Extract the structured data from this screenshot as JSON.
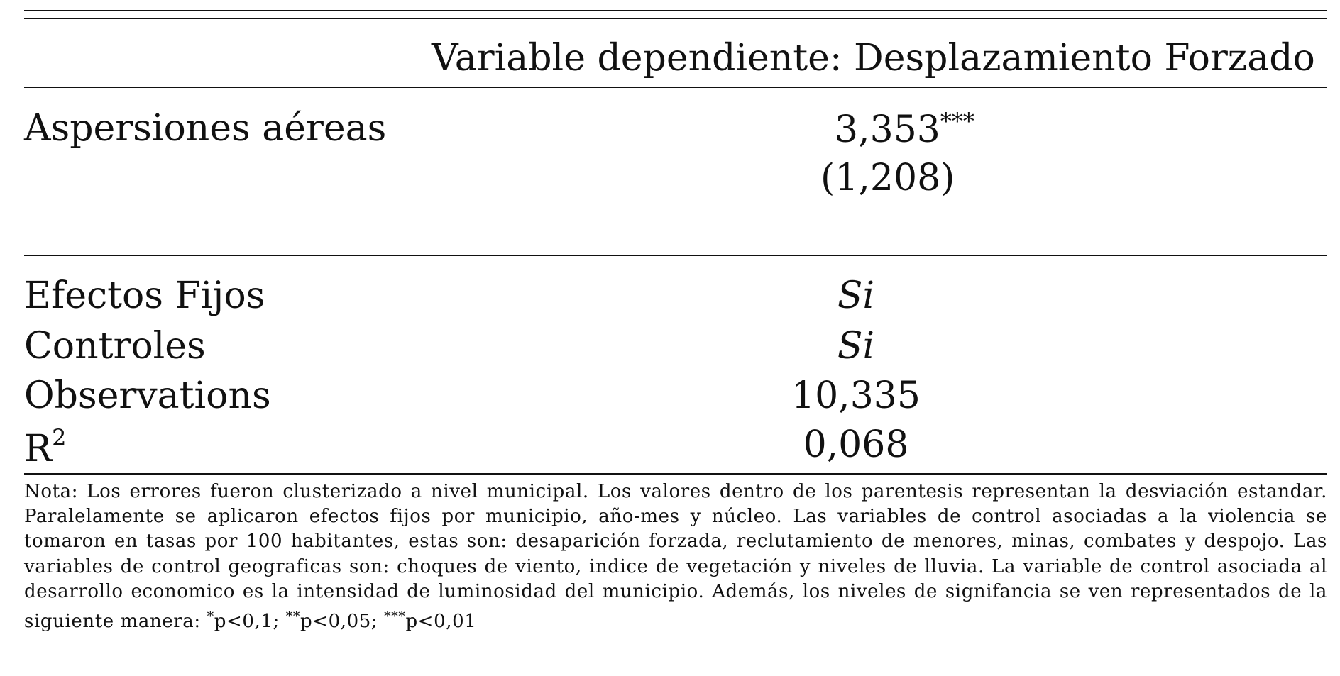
{
  "table": {
    "header": "Variable dependiente: Desplazamiento Forzado",
    "rows": {
      "aspersiones": {
        "label": "Aspersiones aéreas",
        "coef": "3,353",
        "stars": "***",
        "se": "(1,208)"
      },
      "efectos": {
        "label": "Efectos Fijos",
        "value": "Si"
      },
      "controles": {
        "label": "Controles",
        "value": "Si"
      },
      "observations": {
        "label": "Observations",
        "value": "10,335"
      },
      "r2": {
        "label": "R",
        "label_sup": "2",
        "value": "0,068"
      }
    },
    "note": {
      "text": " Nota: Los errores fueron clusterizado a nivel municipal. Los valores dentro de los parentesis representan la desviación estandar. Paralelamente se aplicaron efectos fijos por municipio, año-mes y núcleo. Las variables de control asociadas a la violencia se tomaron en tasas por 100 habitantes, estas son: desaparición forzada, reclutamiento de menores, minas, combates y despojo. Las variables de control geograficas son: choques de viento, indice de vegetación y niveles de lluvia. La variable de control asociada al desarrollo economico es la intensidad de luminosidad del municipio. Además, los niveles de signifancia se ven representados de la siguiente manera: ",
      "sig1_star": "*",
      "sig1_text": "p<0,1; ",
      "sig2_star": "**",
      "sig2_text": "p<0,05; ",
      "sig3_star": "***",
      "sig3_text": "p<0,01"
    }
  }
}
